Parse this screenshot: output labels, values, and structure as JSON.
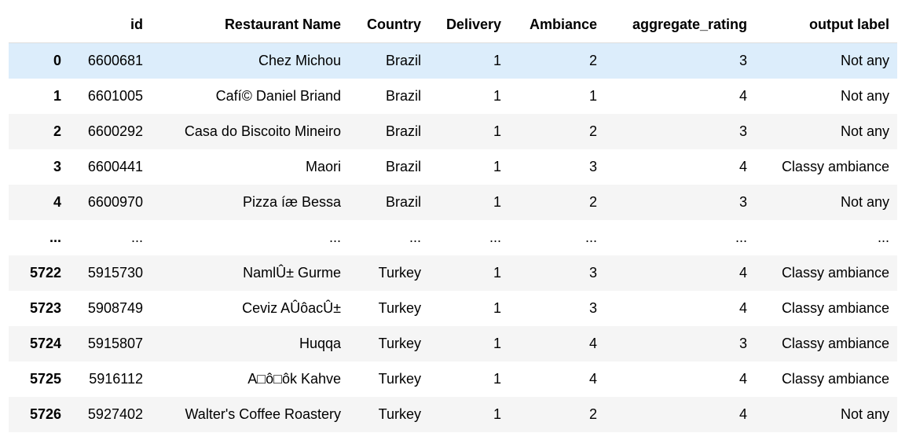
{
  "dataframe": {
    "columns": [
      "",
      "id",
      "Restaurant Name",
      "Country",
      "Delivery",
      "Ambiance",
      "aggregate_rating",
      "output label"
    ],
    "rows": [
      {
        "index": "0",
        "cells": [
          "6600681",
          "Chez Michou",
          "Brazil",
          "1",
          "2",
          "3",
          "Not any"
        ]
      },
      {
        "index": "1",
        "cells": [
          "6601005",
          "Cafí© Daniel Briand",
          "Brazil",
          "1",
          "1",
          "4",
          "Not any"
        ]
      },
      {
        "index": "2",
        "cells": [
          "6600292",
          "Casa do Biscoito Mineiro",
          "Brazil",
          "1",
          "2",
          "3",
          "Not any"
        ]
      },
      {
        "index": "3",
        "cells": [
          "6600441",
          "Maori",
          "Brazil",
          "1",
          "3",
          "4",
          "Classy ambiance"
        ]
      },
      {
        "index": "4",
        "cells": [
          "6600970",
          "Pizza íæ Bessa",
          "Brazil",
          "1",
          "2",
          "3",
          "Not any"
        ]
      },
      {
        "index": "...",
        "cells": [
          "...",
          "...",
          "...",
          "...",
          "...",
          "...",
          "..."
        ]
      },
      {
        "index": "5722",
        "cells": [
          "5915730",
          "NamlÛ± Gurme",
          "Turkey",
          "1",
          "3",
          "4",
          "Classy ambiance"
        ]
      },
      {
        "index": "5723",
        "cells": [
          "5908749",
          "Ceviz AÛôacÛ±",
          "Turkey",
          "1",
          "3",
          "4",
          "Classy ambiance"
        ]
      },
      {
        "index": "5724",
        "cells": [
          "5915807",
          "Huqqa",
          "Turkey",
          "1",
          "4",
          "3",
          "Classy ambiance"
        ]
      },
      {
        "index": "5725",
        "cells": [
          "5916112",
          "A□ô□ôk Kahve",
          "Turkey",
          "1",
          "4",
          "4",
          "Classy ambiance"
        ]
      },
      {
        "index": "5726",
        "cells": [
          "5927402",
          "Walter's Coffee Roastery",
          "Turkey",
          "1",
          "2",
          "4",
          "Not any"
        ]
      }
    ],
    "highlighted_row_index": "0"
  },
  "colors": {
    "row_stripe": "#f5f5f5",
    "row_highlight": "#dcedfb",
    "header_border": "#dddddd"
  }
}
